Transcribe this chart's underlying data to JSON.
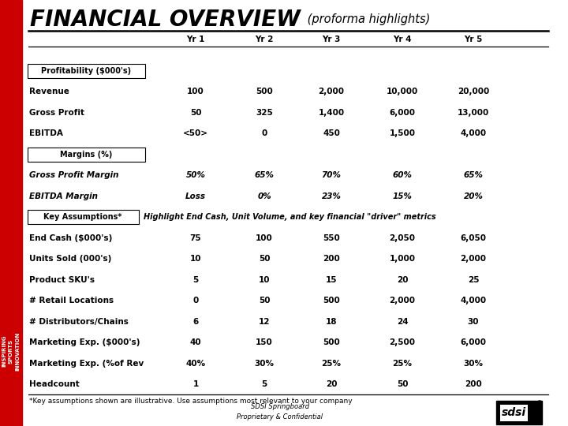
{
  "title_main": "FINANCIAL OVERVIEW",
  "title_sub": " (proforma highlights)",
  "bg_color": "#ffffff",
  "red_bar_color": "#cc0000",
  "yr_labels": [
    "Yr 1",
    "Yr 2",
    "Yr 3",
    "Yr 4",
    "Yr 5"
  ],
  "rows": [
    {
      "label": "Profitability ($000's)",
      "type": "header",
      "values": [
        "",
        "",
        "",
        "",
        ""
      ]
    },
    {
      "label": "Revenue",
      "type": "normal",
      "values": [
        "100",
        "500",
        "2,000",
        "10,000",
        "20,000"
      ]
    },
    {
      "label": "Gross Profit",
      "type": "normal",
      "values": [
        "50",
        "325",
        "1,400",
        "6,000",
        "13,000"
      ]
    },
    {
      "label": "EBITDA",
      "type": "normal",
      "values": [
        "<50>",
        "0",
        "450",
        "1,500",
        "4,000"
      ]
    },
    {
      "label": "Margins (%)",
      "type": "header",
      "values": [
        "",
        "",
        "",
        "",
        ""
      ]
    },
    {
      "label": "Gross Profit Margin",
      "type": "italic_bold",
      "values": [
        "50%",
        "65%",
        "70%",
        "60%",
        "65%"
      ]
    },
    {
      "label": "EBITDA Margin",
      "type": "italic_bold",
      "values": [
        "Loss",
        "0%",
        "23%",
        "15%",
        "20%"
      ]
    },
    {
      "label": "Key Assumptions*",
      "type": "key_header",
      "values": [
        "",
        "",
        "",
        "",
        ""
      ]
    },
    {
      "label": "End Cash ($000's)",
      "type": "normal",
      "values": [
        "75",
        "100",
        "550",
        "2,050",
        "6,050"
      ]
    },
    {
      "label": "Units Sold (000's)",
      "type": "normal",
      "values": [
        "10",
        "50",
        "200",
        "1,000",
        "2,000"
      ]
    },
    {
      "label": "Product SKU's",
      "type": "normal",
      "values": [
        "5",
        "10",
        "15",
        "20",
        "25"
      ]
    },
    {
      "label": "# Retail Locations",
      "type": "normal",
      "values": [
        "0",
        "50",
        "500",
        "2,000",
        "4,000"
      ]
    },
    {
      "label": "# Distributors/Chains",
      "type": "normal",
      "values": [
        "6",
        "12",
        "18",
        "24",
        "30"
      ]
    },
    {
      "label": "Marketing Exp. ($000's)",
      "type": "normal",
      "values": [
        "40",
        "150",
        "500",
        "2,500",
        "6,000"
      ]
    },
    {
      "label": "Marketing Exp. (%of Rev",
      "type": "normal",
      "values": [
        "40%",
        "30%",
        "25%",
        "25%",
        "30%"
      ]
    },
    {
      "label": "Headcount",
      "type": "normal",
      "values": [
        "1",
        "5",
        "20",
        "50",
        "200"
      ]
    }
  ],
  "footnote": "*Key assumptions shown are illustrative. Use assumptions most relevant to your company",
  "key_assumptions_note": "Highlight End Cash, Unit Volume, and key financial \"driver\" metrics",
  "footer_text": "SDSI Springboard\nProprietary & Confidential",
  "side_text": "INSPIRING\nSPORTS\nINNOVATION"
}
